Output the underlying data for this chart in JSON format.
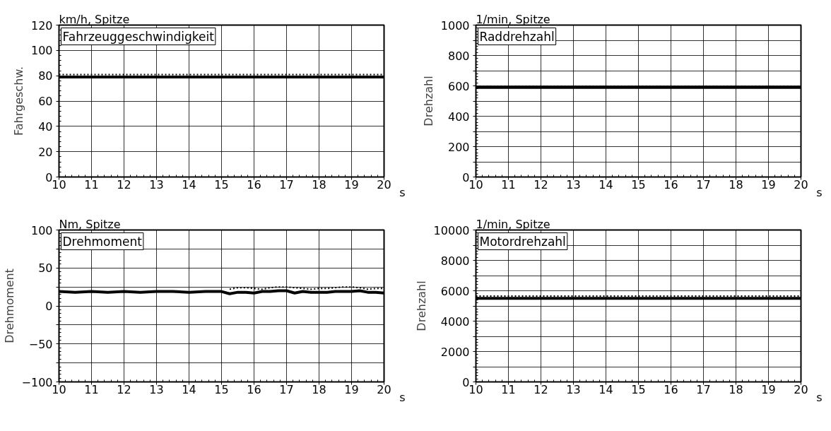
{
  "chart_data": [
    {
      "type": "line",
      "title": "Fahrzeuggeschwindigkeit",
      "subtitle": "km/h, Spitze",
      "ylabel": "Fahrgeschw.",
      "xlabel": "s",
      "x": [
        10,
        20
      ],
      "series": [
        {
          "color": "#000000",
          "values": [
            81,
            81
          ],
          "line_style": "dotted"
        },
        {
          "color": "#000000",
          "values": [
            79,
            79
          ],
          "line_style": "solid"
        }
      ],
      "xlim": [
        10,
        20
      ],
      "ylim": [
        0,
        120
      ],
      "xticks": [
        10,
        11,
        12,
        13,
        14,
        15,
        16,
        17,
        18,
        19,
        20
      ],
      "yticks": [
        0,
        20,
        40,
        60,
        80,
        100,
        120
      ],
      "grid": true
    },
    {
      "type": "line",
      "title": "Raddrehzahl",
      "subtitle": "1/min, Spitze",
      "ylabel": "Drehzahl",
      "xlabel": "s",
      "x": [
        10,
        20
      ],
      "series": [
        {
          "color": "#000000",
          "values": [
            597,
            597
          ],
          "line_style": "dotted"
        },
        {
          "color": "#000000",
          "values": [
            590,
            590
          ],
          "line_style": "solid"
        }
      ],
      "xlim": [
        10,
        20
      ],
      "ylim": [
        0,
        1000
      ],
      "xticks": [
        10,
        11,
        12,
        13,
        14,
        15,
        16,
        17,
        18,
        19,
        20
      ],
      "yticks": [
        0,
        {
          "value": 100,
          "label": null
        },
        200,
        {
          "value": 300,
          "label": null
        },
        400,
        {
          "value": 500,
          "label": null
        },
        600,
        {
          "value": 700,
          "label": null
        },
        800,
        {
          "value": 900,
          "label": null
        },
        1000
      ],
      "grid": true
    },
    {
      "type": "line",
      "title": "Drehmoment",
      "subtitle": "Nm, Spitze",
      "ylabel": "Drehmoment",
      "xlabel": "s",
      "x": [
        10,
        10.5,
        11,
        11.5,
        12,
        12.5,
        13,
        13.5,
        14,
        14.5,
        15,
        15.25,
        15.5,
        15.75,
        16,
        16.25,
        16.5,
        16.75,
        17,
        17.25,
        17.5,
        17.75,
        18,
        18.25,
        18.5,
        18.75,
        19,
        19.25,
        19.5,
        19.75,
        20
      ],
      "series": [
        {
          "color": "#000000",
          "line_style": "dotted",
          "values": [
            null,
            null,
            null,
            null,
            null,
            null,
            null,
            null,
            null,
            null,
            null,
            22,
            24,
            24,
            23,
            22,
            24,
            25,
            25,
            24,
            23,
            22,
            23,
            23,
            24,
            25,
            25,
            24,
            22,
            23,
            23
          ]
        },
        {
          "color": "#000000",
          "line_style": "solid",
          "values": [
            19,
            18,
            19,
            18,
            19,
            18,
            19,
            19,
            18,
            19,
            19,
            16,
            18,
            18,
            17,
            19,
            19,
            20,
            20,
            17,
            19,
            18,
            18,
            18,
            19,
            19,
            19,
            20,
            18,
            18,
            17
          ]
        }
      ],
      "xlim": [
        10,
        20
      ],
      "ylim": [
        -100,
        100
      ],
      "xticks": [
        10,
        11,
        12,
        13,
        14,
        15,
        16,
        17,
        18,
        19,
        20
      ],
      "yticks": [
        -100,
        {
          "value": -75,
          "label": null
        },
        -50,
        {
          "value": -25,
          "label": null
        },
        0,
        {
          "value": 25,
          "label": null
        },
        50,
        {
          "value": 75,
          "label": null
        },
        100
      ],
      "grid": true
    },
    {
      "type": "line",
      "title": "Motordrehzahl",
      "subtitle": "1/min, Spitze",
      "ylabel": "Drehzahl",
      "xlabel": "s",
      "x": [
        10,
        20
      ],
      "series": [
        {
          "color": "#000000",
          "values": [
            5650,
            5650
          ],
          "line_style": "dotted"
        },
        {
          "color": "#000000",
          "values": [
            5500,
            5500
          ],
          "line_style": "solid"
        }
      ],
      "xlim": [
        10,
        20
      ],
      "ylim": [
        0,
        10000
      ],
      "xticks": [
        10,
        11,
        12,
        13,
        14,
        15,
        16,
        17,
        18,
        19,
        20
      ],
      "yticks": [
        0,
        {
          "value": 1000,
          "label": null
        },
        2000,
        {
          "value": 3000,
          "label": null
        },
        4000,
        {
          "value": 5000,
          "label": null
        },
        6000,
        {
          "value": 7000,
          "label": null
        },
        8000,
        {
          "value": 9000,
          "label": null
        },
        10000
      ],
      "grid": true
    }
  ]
}
